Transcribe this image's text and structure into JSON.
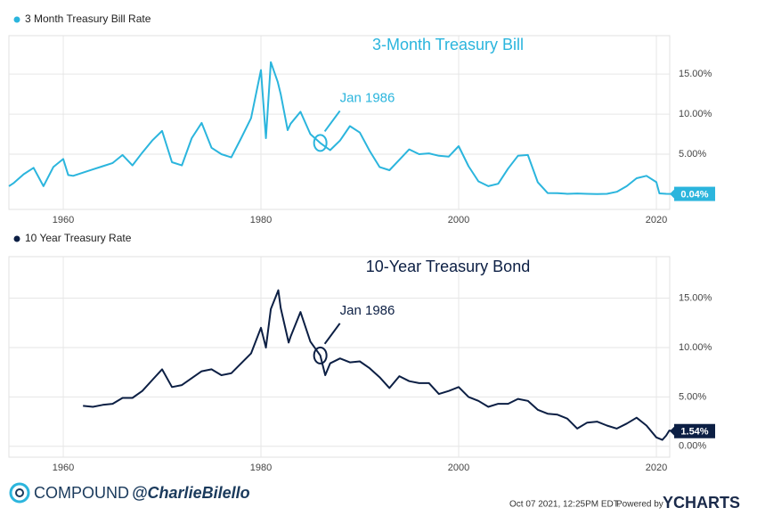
{
  "chart_data": [
    {
      "type": "line",
      "title": "3-Month Treasury Bill",
      "x": [
        1954.5,
        1955,
        1956,
        1957,
        1958,
        1959,
        1960,
        1960.5,
        1961,
        1962,
        1963,
        1964,
        1965,
        1966,
        1967,
        1968,
        1969,
        1970,
        1971,
        1972,
        1973,
        1974,
        1975,
        1976,
        1977,
        1978,
        1979,
        1980,
        1980.5,
        1981,
        1981.7,
        1982,
        1982.7,
        1983,
        1984,
        1985,
        1986,
        1987,
        1988,
        1989,
        1990,
        1991,
        1992,
        1993,
        1994,
        1995,
        1996,
        1997,
        1998,
        1999,
        2000,
        2001,
        2002,
        2003,
        2004,
        2005,
        2006,
        2007,
        2008,
        2009,
        2010,
        2011,
        2012,
        2013,
        2014,
        2015,
        2016,
        2017,
        2018,
        2019,
        2020,
        2020.3,
        2021,
        2021.76
      ],
      "series": [
        {
          "name": "3 Month Treasury Bill Rate",
          "color": "#2bb5dd",
          "values": [
            1.0,
            1.4,
            2.5,
            3.3,
            1.0,
            3.4,
            4.4,
            2.4,
            2.3,
            2.7,
            3.1,
            3.5,
            3.9,
            4.9,
            3.6,
            5.2,
            6.7,
            7.9,
            4.0,
            3.6,
            7.0,
            8.9,
            5.8,
            5.0,
            4.6,
            7.0,
            9.5,
            15.5,
            7.0,
            16.5,
            14.0,
            12.5,
            8.0,
            8.8,
            10.3,
            7.5,
            6.4,
            5.5,
            6.7,
            8.5,
            7.7,
            5.4,
            3.4,
            3.0,
            4.3,
            5.6,
            5.0,
            5.1,
            4.8,
            4.7,
            6.0,
            3.5,
            1.6,
            1.0,
            1.3,
            3.2,
            4.8,
            4.9,
            1.5,
            0.15,
            0.14,
            0.05,
            0.09,
            0.05,
            0.03,
            0.05,
            0.3,
            1.0,
            2.0,
            2.3,
            1.5,
            0.1,
            0.05,
            0.04
          ]
        }
      ],
      "end_label": "0.04%",
      "annotation": {
        "text": "Jan 1986",
        "x": 1986
      },
      "xlim": [
        1954.5,
        2021.8
      ],
      "xticks": [
        1960,
        1980,
        2000,
        2020
      ],
      "ylim": [
        -1.9,
        19.8
      ],
      "yticks": [
        {
          "value": 5,
          "label": "5.00%"
        },
        {
          "value": 10,
          "label": "10.00%"
        },
        {
          "value": 15,
          "label": "15.00%"
        }
      ],
      "grid": true
    },
    {
      "type": "line",
      "title": "10-Year Treasury Bond",
      "x": [
        1962,
        1963,
        1964,
        1965,
        1966,
        1967,
        1968,
        1969,
        1970,
        1971,
        1972,
        1973,
        1974,
        1975,
        1976,
        1977,
        1978,
        1979,
        1980,
        1980.5,
        1981,
        1981.75,
        1982,
        1982.8,
        1983,
        1984,
        1985,
        1986,
        1986.5,
        1987,
        1988,
        1989,
        1990,
        1991,
        1992,
        1993,
        1994,
        1995,
        1996,
        1997,
        1998,
        1999,
        2000,
        2001,
        2002,
        2003,
        2004,
        2005,
        2006,
        2007,
        2008,
        2009,
        2010,
        2011,
        2012,
        2013,
        2014,
        2015,
        2016,
        2017,
        2018,
        2019,
        2020,
        2020.6,
        2021,
        2021.3,
        2021.76
      ],
      "series": [
        {
          "name": "10 Year Treasury Rate",
          "color": "#0c1f44",
          "values": [
            4.1,
            4.0,
            4.2,
            4.3,
            4.9,
            4.9,
            5.6,
            6.7,
            7.8,
            6.0,
            6.2,
            6.9,
            7.6,
            7.8,
            7.2,
            7.4,
            8.4,
            9.4,
            12.0,
            10.0,
            13.9,
            15.8,
            14.0,
            10.5,
            11.1,
            13.6,
            10.6,
            9.2,
            7.2,
            8.4,
            8.9,
            8.5,
            8.6,
            7.9,
            7.0,
            5.9,
            7.1,
            6.6,
            6.4,
            6.4,
            5.3,
            5.6,
            6.0,
            5.0,
            4.6,
            4.0,
            4.3,
            4.3,
            4.8,
            4.6,
            3.7,
            3.3,
            3.2,
            2.8,
            1.8,
            2.4,
            2.5,
            2.1,
            1.8,
            2.3,
            2.9,
            2.1,
            0.9,
            0.65,
            1.1,
            1.6,
            1.54
          ]
        }
      ],
      "end_label": "1.54%",
      "annotation": {
        "text": "Jan 1986",
        "x": 1986
      },
      "xlim": [
        1954.5,
        2021.8
      ],
      "xticks": [
        1960,
        1980,
        2000,
        2020
      ],
      "ylim": [
        -1.1,
        19.2
      ],
      "yticks": [
        {
          "value": 0,
          "label": "0.00%"
        },
        {
          "value": 5,
          "label": "5.00%"
        },
        {
          "value": 10,
          "label": "10.00%"
        },
        {
          "value": 15,
          "label": "15.00%"
        }
      ],
      "grid": true
    }
  ],
  "footer": {
    "brand": "COMPOUND",
    "handle": "@CharlieBilello",
    "timestamp": "Oct 07 2021, 12:25PM EDT.",
    "powered": "Powered by",
    "provider": "YCHARTS"
  }
}
